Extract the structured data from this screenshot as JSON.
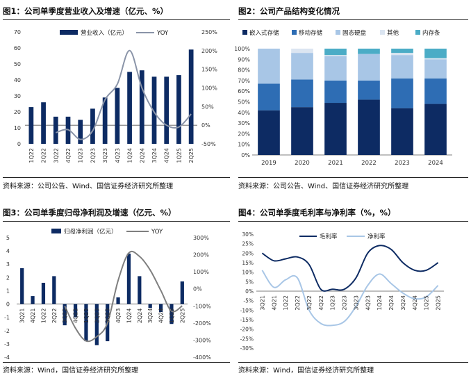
{
  "colors": {
    "navy": "#0d2b63",
    "gray": "#8a94a8",
    "dgray": "#7f7f7f",
    "blue": "#2e6db4",
    "lblue": "#a8c6e6",
    "pale": "#dbe5f1",
    "teal": "#4bacc6"
  },
  "panels": [
    {
      "title": "图1：公司单季度营业收入及增速（亿元、%）",
      "source": "资料来源：公司公告、Wind、国信证券经济研究所整理"
    },
    {
      "title": "图2：公司产品结构变化情况",
      "source": "资料来源：公司公告、Wind、国信证券经济研究所整理"
    },
    {
      "title": "图3：公司单季度归母净利润及增速（亿元、%）",
      "source": "资料来源：Wind，国信证券经济研究所整理"
    },
    {
      "title": "图4：公司单季度毛利率与净利率（%，%）",
      "source": "资料来源：Wind，国信证券经济研究所整理"
    }
  ],
  "chart_data": [
    {
      "type": "bar",
      "title": "图1：公司单季度营业收入及增速（亿元、%）",
      "categories": [
        "1Q22",
        "2Q22",
        "3Q22",
        "4Q22",
        "1Q23",
        "2Q23",
        "3Q23",
        "4Q23",
        "1Q24",
        "2Q24",
        "3Q24",
        "4Q24",
        "1Q25",
        "2Q25"
      ],
      "series": [
        {
          "name": "营业收入（亿元）",
          "kind": "bar",
          "axis": "left",
          "values": [
            23,
            26,
            17,
            17,
            15,
            22,
            29,
            35,
            45,
            46,
            42,
            42,
            43,
            59
          ]
        },
        {
          "name": "YOY",
          "kind": "line",
          "axis": "right",
          "values": [
            null,
            null,
            -20,
            -12,
            -38,
            -15,
            68,
            110,
            200,
            100,
            35,
            0,
            -5,
            30
          ]
        }
      ],
      "ylim": [
        0,
        70
      ],
      "yticks": [
        0,
        10,
        20,
        30,
        40,
        50,
        60,
        70
      ],
      "y2lim": [
        -50,
        250
      ],
      "y2ticks": [
        "-50%",
        "0%",
        "50%",
        "100%",
        "150%",
        "200%",
        "250%"
      ],
      "legend": "top"
    },
    {
      "type": "bar",
      "stacked": true,
      "title": "图2：公司产品结构变化情况",
      "categories": [
        "2019",
        "2020",
        "2021",
        "2022",
        "2023",
        "2024"
      ],
      "series": [
        {
          "name": "嵌入式存储",
          "values": [
            42,
            45,
            49,
            52,
            44,
            48
          ]
        },
        {
          "name": "移动存储",
          "values": [
            25,
            26,
            21,
            18,
            28,
            24
          ]
        },
        {
          "name": "固态硬盘",
          "values": [
            33,
            25,
            23,
            25,
            22,
            18
          ]
        },
        {
          "name": "其他",
          "values": [
            0,
            4,
            1,
            0,
            2,
            1
          ]
        },
        {
          "name": "内存条",
          "values": [
            0,
            0,
            6,
            5,
            4,
            9
          ]
        }
      ],
      "ylim": [
        0,
        100
      ],
      "yticks": [
        "0%",
        "10%",
        "20%",
        "30%",
        "40%",
        "50%",
        "60%",
        "70%",
        "80%",
        "90%",
        "100%"
      ],
      "legend": "top"
    },
    {
      "type": "bar",
      "title": "图3：公司单季度归母净利润及增速（亿元、%）",
      "categories": [
        "3Q21",
        "4Q21",
        "1Q22",
        "2Q22",
        "3Q22",
        "4Q22",
        "1Q23",
        "2Q23",
        "3Q23",
        "4Q23",
        "1Q24",
        "2Q24",
        "3Q24",
        "4Q24",
        "1Q25",
        "2Q25"
      ],
      "series": [
        {
          "name": "归母净利润（亿元）",
          "kind": "bar",
          "axis": "left",
          "values": [
            2.7,
            0.6,
            1.6,
            2.1,
            -1.6,
            -1.0,
            -2.8,
            -3.1,
            -2.8,
            0.5,
            3.8,
            2.1,
            -0.3,
            -0.6,
            -1.5,
            1.7
          ]
        },
        {
          "name": "YOY",
          "kind": "line",
          "axis": "right",
          "values": [
            null,
            null,
            null,
            null,
            -100,
            -230,
            -305,
            -280,
            -200,
            50,
            210,
            190,
            110,
            -10,
            -130,
            -100
          ]
        }
      ],
      "ylim": [
        -4,
        5
      ],
      "yticks": [
        -4,
        -3,
        -2,
        -1,
        0,
        1,
        2,
        3,
        4,
        5
      ],
      "y2lim": [
        -400,
        300
      ],
      "y2ticks": [
        "-400%",
        "-300%",
        "-200%",
        "-100%",
        "0%",
        "100%",
        "200%",
        "300%"
      ],
      "legend": "top"
    },
    {
      "type": "line",
      "title": "图4：公司单季度毛利率与净利率（%，%）",
      "categories": [
        "3Q21",
        "4Q21",
        "1Q22",
        "2Q22",
        "3Q22",
        "4Q22",
        "1Q23",
        "2Q23",
        "3Q23",
        "4Q23",
        "1Q24",
        "2Q24",
        "3Q24",
        "4Q24",
        "1Q25",
        "2Q25"
      ],
      "series": [
        {
          "name": "毛利率",
          "values": [
            20,
            16,
            17,
            18,
            14,
            1,
            1,
            1,
            7,
            20,
            24,
            22,
            15,
            11,
            11,
            15
          ]
        },
        {
          "name": "净利率",
          "values": [
            11,
            2,
            6,
            7,
            -10,
            -17,
            -18,
            -16,
            -8,
            3,
            9,
            4,
            -1,
            -4,
            -3,
            3
          ]
        }
      ],
      "ylim": [
        -30,
        30
      ],
      "yticks": [
        "-30%",
        "-25%",
        "-20%",
        "-15%",
        "-10%",
        "-5%",
        "0%",
        "5%",
        "10%",
        "15%",
        "20%",
        "25%",
        "30%"
      ],
      "legend": "top"
    }
  ]
}
